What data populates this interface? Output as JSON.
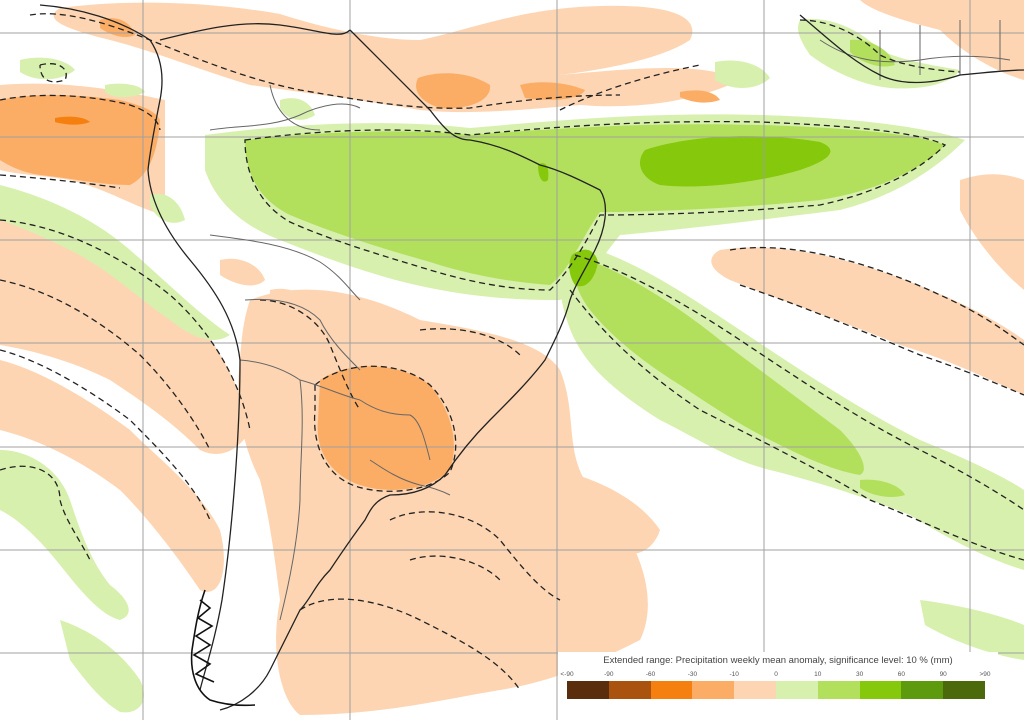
{
  "map": {
    "region": "South America and tropical Atlantic",
    "variable": "Precipitation weekly mean anomaly",
    "gridlines": {
      "vertical_x": [
        143,
        350,
        557,
        764,
        970
      ],
      "horizontal_y": [
        33,
        137,
        240,
        343,
        447,
        550,
        653
      ],
      "color": "#a0a0a0"
    },
    "significance_contour_style": "dashed",
    "regions": [
      {
        "name": "equatorial-atlantic-wet-band",
        "category": "10 to 30",
        "peak_category": "30 to 60"
      },
      {
        "name": "south-atlantic-convergence-zone-wet",
        "category": "10 to 30"
      },
      {
        "name": "east-pacific-dry-tongue",
        "category": "-30 to -10"
      },
      {
        "name": "la-plata-basin-dry",
        "category": "-30 to -10"
      },
      {
        "name": "caribbean-dry-band",
        "category": "-10 to 0"
      },
      {
        "name": "patagonia-south-atlantic-dry",
        "category": "-10 to 0"
      },
      {
        "name": "west-africa-gulf-of-guinea-wet",
        "category": "0 to 10"
      }
    ]
  },
  "legend": {
    "title": "Extended range: Precipitation weekly mean anomaly, significance level: 10 % (mm)",
    "ticks": [
      "<-90",
      "-90",
      "-60",
      "-30",
      "-10",
      "0",
      "10",
      "30",
      "60",
      "90",
      ">90"
    ],
    "colors": [
      "#5a2d0c",
      "#a9530f",
      "#f57f0f",
      "#fbad66",
      "#fdd5b2",
      "#d8f0ae",
      "#b2e05c",
      "#85c80c",
      "#5e9a0e",
      "#4c6a0c"
    ]
  },
  "palette": {
    "dry_light": "#fdd5b2",
    "dry_medium": "#fbad66",
    "dry_strong": "#f57f0f",
    "wet_light": "#d8f0ae",
    "wet_medium": "#b2e05c",
    "wet_strong": "#85c80c",
    "coast": "#222222",
    "border": "#666666",
    "contour": "#222222"
  }
}
